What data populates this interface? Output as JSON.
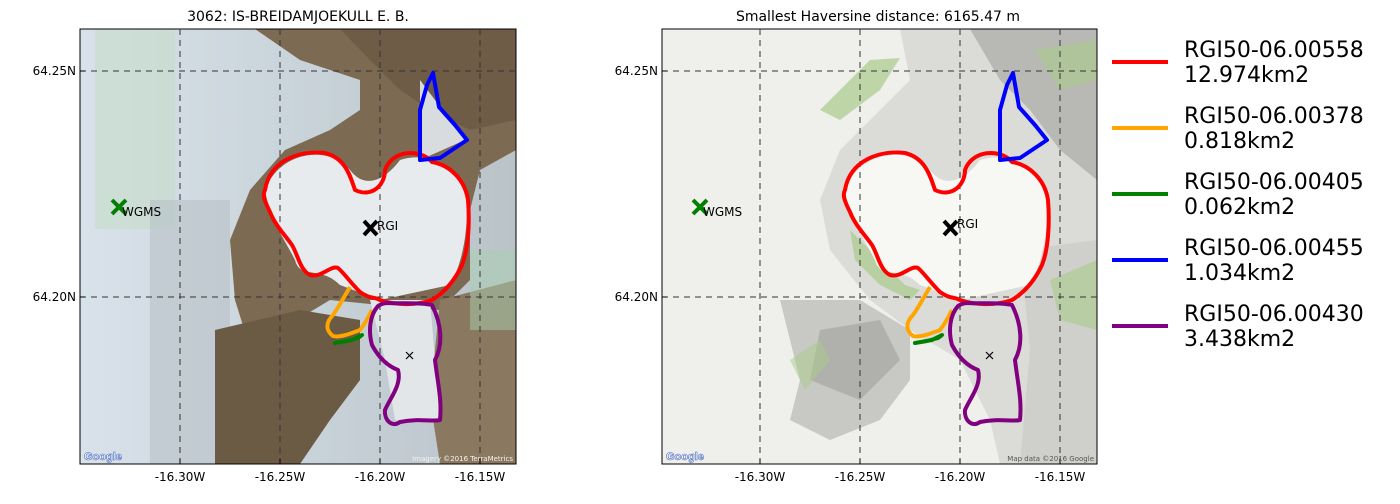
{
  "left_panel": {
    "title": "3062: IS-BREIDAMJOEKULL E. B.",
    "attribution": "Imagery ©2016 TerraMetrics",
    "logo": "Google"
  },
  "right_panel": {
    "title": "Smallest Haversine distance: 6165.47 m",
    "attribution": "Map data ©2016 Google",
    "logo": "Google"
  },
  "axes": {
    "y_ticks": [
      "64.25N",
      "64.20N"
    ],
    "x_ticks": [
      "-16.30W",
      "-16.25W",
      "-16.20W",
      "-16.15W"
    ],
    "grid": true,
    "grid_style": "dashed"
  },
  "markers": {
    "wgms": {
      "label": "WGMS",
      "color": "#008000",
      "lon": -16.331,
      "lat": 64.219
    },
    "rgi": {
      "label": "RGI",
      "color": "#000000",
      "lon": -16.204,
      "lat": 64.215
    }
  },
  "legend": {
    "placement": "right",
    "items": [
      {
        "id": "RGI50-06.00558",
        "area": "12.974km2",
        "color": "#ff0000"
      },
      {
        "id": "RGI50-06.00378",
        "area": "0.818km2",
        "color": "#ffa500"
      },
      {
        "id": "RGI50-06.00405",
        "area": "0.062km2",
        "color": "#008000"
      },
      {
        "id": "RGI50-06.00455",
        "area": "1.034km2",
        "color": "#0000ff"
      },
      {
        "id": "RGI50-06.00430",
        "area": "3.438km2",
        "color": "#800080"
      }
    ]
  },
  "icons": [
    "cross-marker-icon",
    "small-cross-icon",
    "google-logo-icon"
  ]
}
